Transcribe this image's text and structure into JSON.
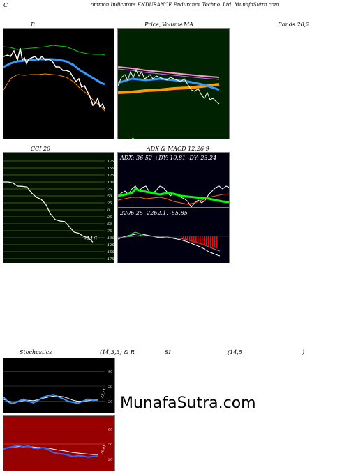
{
  "header": {
    "c": "C",
    "title": "ommon  Indicators ENDURANCE Endurance   Techno. Ltd. MunafaSutra.com"
  },
  "labels": {
    "b": "B",
    "price": "Price,",
    "volume": "Volume",
    "ma": "MA",
    "bands": "Bands 20,2",
    "cci": "CCI 20",
    "adx_macd": "ADX   & MACD 12,26,9",
    "stoch_a": "Stochastics",
    "stoch_b": "(14,3,3) & R",
    "rsi_a": "SI",
    "rsi_b": "(14,5",
    "rsi_c": ")"
  },
  "adx": {
    "text": "ADX: 36.52  +DY: 10.81 -DY: 23.24"
  },
  "macd": {
    "text": "2206.25,  2262.1,  -55.85"
  },
  "cci": {
    "ticks": [
      "175",
      "150",
      "125",
      "100",
      "75",
      "50",
      "25",
      "0",
      "25",
      "50",
      "75",
      "100",
      "125",
      "150",
      "175"
    ],
    "value_label": "-116",
    "values": [
      100,
      100,
      96,
      85,
      84,
      82,
      60,
      45,
      38,
      20,
      -15,
      -35,
      -40,
      -42,
      -60,
      -80,
      -84,
      -95,
      -100,
      -116
    ]
  },
  "stoch": {
    "ticks": [
      "80",
      "50",
      "20"
    ],
    "value_label": "22.11",
    "k": [
      28,
      18,
      15,
      20,
      24,
      20,
      17,
      22,
      28,
      31,
      33,
      29,
      25,
      20,
      18,
      16,
      20,
      24,
      22,
      23
    ],
    "d": [
      24,
      20,
      18,
      20,
      21,
      22,
      21,
      23,
      26,
      28,
      30,
      30,
      29,
      26,
      22,
      20,
      20,
      21,
      22,
      22
    ]
  },
  "rsi": {
    "ticks": [
      "80",
      "50",
      "20"
    ],
    "value_label": "26.01",
    "rsi": [
      40,
      43,
      45,
      47,
      44,
      46,
      42,
      41,
      43,
      39,
      33,
      31,
      30,
      28,
      25,
      27,
      26,
      24,
      25,
      26
    ],
    "ma": [
      42,
      43,
      44,
      45,
      45,
      45,
      44,
      43,
      43,
      42,
      40,
      38,
      37,
      35,
      33,
      32,
      31,
      30,
      29,
      29
    ]
  },
  "watermark": "MunafaSutra.com",
  "colors": {
    "bollinger_bg": "#000000",
    "price_bg": "#002200",
    "cci_bg": "#001100",
    "adx_bg": "#000011",
    "stoch_bg": "#000000",
    "rsi_bg": "#990000",
    "price_line": "#ffffff",
    "mid_band": "#3399ff",
    "upper_band": "#00cc00",
    "lower_band": "#ff8800",
    "ma_orange": "#ff9900",
    "ma_pink": "#ff99cc",
    "plus_di": "#00ff00",
    "minus_di": "#ff6600",
    "macd_hist": "#ff0000"
  }
}
